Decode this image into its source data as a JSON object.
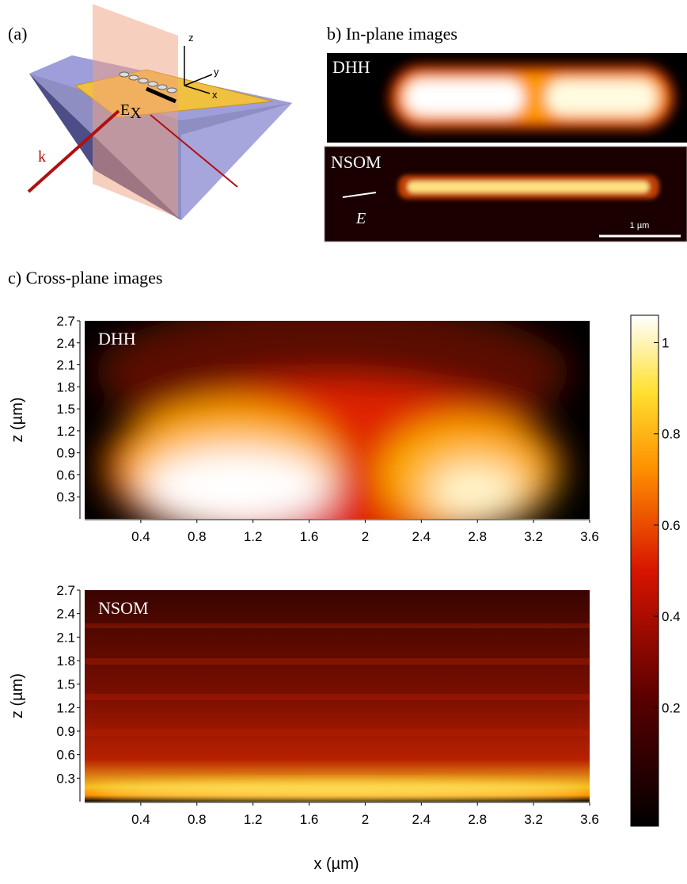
{
  "panel_a": {
    "label": "(a)",
    "axis_z": "z",
    "axis_y": "y",
    "axis_x": "x",
    "field": "E",
    "field_sub": "X",
    "wave": "k"
  },
  "panel_b": {
    "title": "b) In-plane images",
    "top_label": "DHH",
    "bottom_label": "NSOM",
    "field_symbol": "E",
    "scale_bar": "1 µm"
  },
  "panel_c": {
    "title": "c) Cross-plane images",
    "xlabel": "x (µm)",
    "xlim": [
      0,
      3.6
    ],
    "xticks": [
      0.4,
      0.8,
      1.2,
      1.6,
      2,
      2.4,
      2.8,
      3.2,
      3.6
    ],
    "ylim": [
      0,
      2.7
    ],
    "yticks": [
      0.3,
      0.6,
      0.9,
      1.2,
      1.5,
      1.8,
      2.1,
      2.4,
      2.7
    ],
    "plots": [
      {
        "label": "DHH",
        "ylabel": "z (µm)"
      },
      {
        "label": "NSOM",
        "ylabel": "z (µm)"
      }
    ],
    "colorbar": {
      "ylim": [
        -0.06,
        1.06
      ],
      "yticks": [
        0.2,
        0.4,
        0.6,
        0.8,
        1
      ]
    }
  }
}
